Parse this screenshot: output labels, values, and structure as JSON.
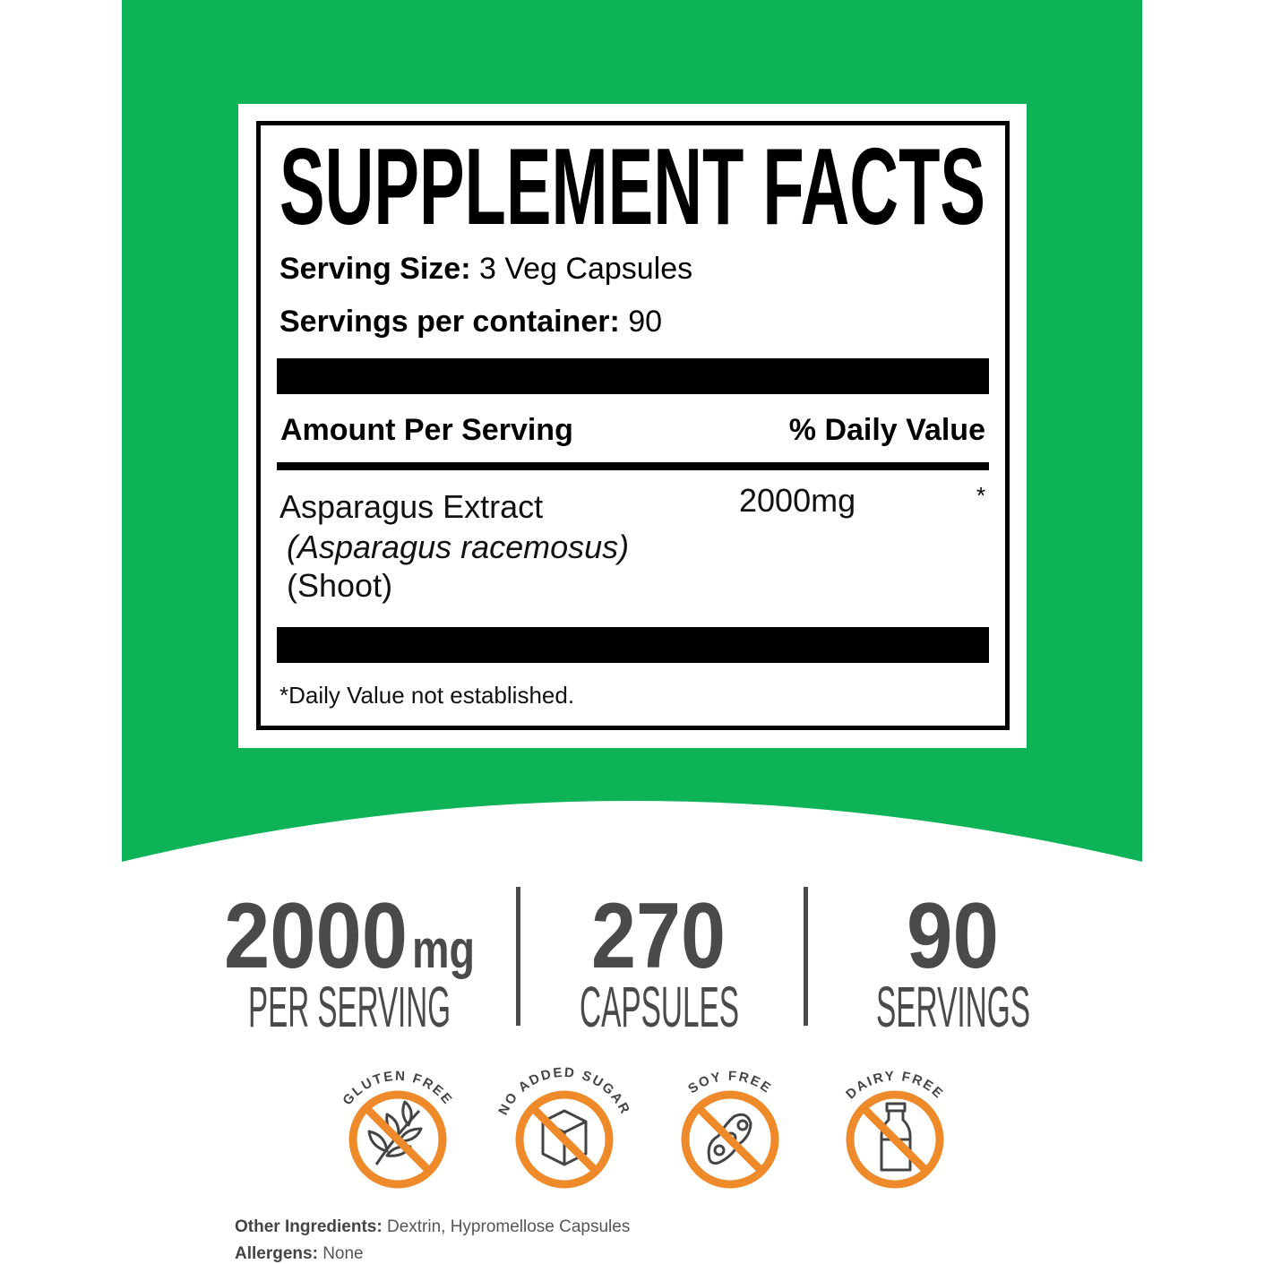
{
  "colors": {
    "green": "#0db356",
    "orange": "#ee8a2a",
    "stat_gray": "#4a4a4a",
    "icon_gray": "#444444"
  },
  "label": {
    "title": "SUPPLEMENT FACTS",
    "serving_size_label": "Serving Size:",
    "serving_size_value": "3 Veg Capsules",
    "servings_label": "Servings per container:",
    "servings_value": "90",
    "amount_header": "Amount Per Serving",
    "dv_header": "% Daily Value",
    "ingredient": {
      "name": "Asparagus Extract",
      "latin": "(Asparagus racemosus)",
      "part": "(Shoot)",
      "amount": "2000mg",
      "dv": "*"
    },
    "footnote": "*Daily Value not established."
  },
  "stats": [
    {
      "value": "2000",
      "unit": "mg",
      "label": "PER SERVING"
    },
    {
      "value": "270",
      "label": "CAPSULES"
    },
    {
      "value": "90",
      "label": "SERVINGS"
    }
  ],
  "badges": [
    {
      "label": "GLUTEN FREE",
      "icon": "wheat-icon"
    },
    {
      "label": "NO ADDED SUGAR",
      "icon": "sugar-cube-icon"
    },
    {
      "label": "SOY FREE",
      "icon": "soybean-icon"
    },
    {
      "label": "DAIRY FREE",
      "icon": "milk-bottle-icon"
    }
  ],
  "other_ingredients": {
    "label": "Other Ingredients:",
    "value": "Dextrin, Hypromellose Capsules"
  },
  "allergens": {
    "label": "Allergens:",
    "value": "None"
  }
}
